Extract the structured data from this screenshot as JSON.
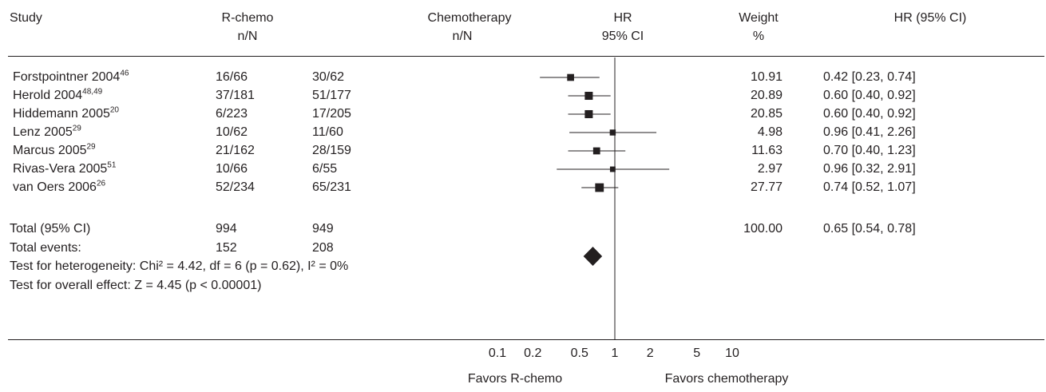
{
  "headers": {
    "study": "Study",
    "rchemo": "R-chemo",
    "rchemo_sub": "n/N",
    "chemo": "Chemotherapy",
    "chemo_sub": "n/N",
    "hr": "HR",
    "hr_sub": "95% CI",
    "weight": "Weight",
    "weight_sub": "%",
    "hrci": "HR (95% CI)"
  },
  "rows": [
    {
      "study": "Forstpointner 2004",
      "ref": "46",
      "rchemo": "16/66",
      "chemo": "30/62",
      "weight": "10.91",
      "hrci": "0.42 [0.23, 0.74]"
    },
    {
      "study": "Herold 2004",
      "ref": "48,49",
      "rchemo": "37/181",
      "chemo": "51/177",
      "weight": "20.89",
      "hrci": "0.60 [0.40, 0.92]"
    },
    {
      "study": "Hiddemann 2005",
      "ref": "20",
      "rchemo": "6/223",
      "chemo": "17/205",
      "weight": "20.85",
      "hrci": "0.60 [0.40, 0.92]"
    },
    {
      "study": "Lenz 2005",
      "ref": "29",
      "rchemo": "10/62",
      "chemo": "11/60",
      "weight": "4.98",
      "hrci": "0.96 [0.41, 2.26]"
    },
    {
      "study": "Marcus 2005",
      "ref": "29",
      "rchemo": "21/162",
      "chemo": "28/159",
      "weight": "11.63",
      "hrci": "0.70 [0.40, 1.23]"
    },
    {
      "study": "Rivas-Vera 2005",
      "ref": "51",
      "rchemo": "10/66",
      "chemo": "6/55",
      "weight": "2.97",
      "hrci": "0.96 [0.32, 2.91]"
    },
    {
      "study": "van Oers 2006",
      "ref": "26",
      "rchemo": "52/234",
      "chemo": "65/231",
      "weight": "27.77",
      "hrci": "0.74 [0.52, 1.07]"
    }
  ],
  "total": {
    "label": "Total (95% CI)",
    "rchemo": "994",
    "chemo": "949",
    "weight": "100.00",
    "hrci": "0.65 [0.54, 0.78]"
  },
  "events": {
    "label": "Total events:",
    "rchemo": "152",
    "chemo": "208"
  },
  "heterogeneity": "Test for heterogeneity: Chi² = 4.42, df = 6 (p = 0.62), I² = 0%",
  "overall": "Test for overall effect: Z = 4.45 (p < 0.00001)",
  "chart_data": {
    "type": "forest",
    "xscale": "log",
    "xlim": [
      0.1,
      10
    ],
    "ticks": [
      0.1,
      0.2,
      0.5,
      1,
      2,
      5,
      10
    ],
    "tick_labels": [
      "0.1",
      "0.2",
      "0.5",
      "1",
      "2",
      "5",
      "10"
    ],
    "favors_left": "Favors R-chemo",
    "favors_right": "Favors chemotherapy",
    "studies": [
      {
        "hr": 0.42,
        "lo": 0.23,
        "hi": 0.74,
        "weight": 10.91
      },
      {
        "hr": 0.6,
        "lo": 0.4,
        "hi": 0.92,
        "weight": 20.89
      },
      {
        "hr": 0.6,
        "lo": 0.4,
        "hi": 0.92,
        "weight": 20.85
      },
      {
        "hr": 0.96,
        "lo": 0.41,
        "hi": 2.26,
        "weight": 4.98
      },
      {
        "hr": 0.7,
        "lo": 0.4,
        "hi": 1.23,
        "weight": 11.63
      },
      {
        "hr": 0.96,
        "lo": 0.32,
        "hi": 2.91,
        "weight": 2.97
      },
      {
        "hr": 0.74,
        "lo": 0.52,
        "hi": 1.07,
        "weight": 27.77
      }
    ],
    "pooled": {
      "hr": 0.65,
      "lo": 0.54,
      "hi": 0.78
    }
  }
}
